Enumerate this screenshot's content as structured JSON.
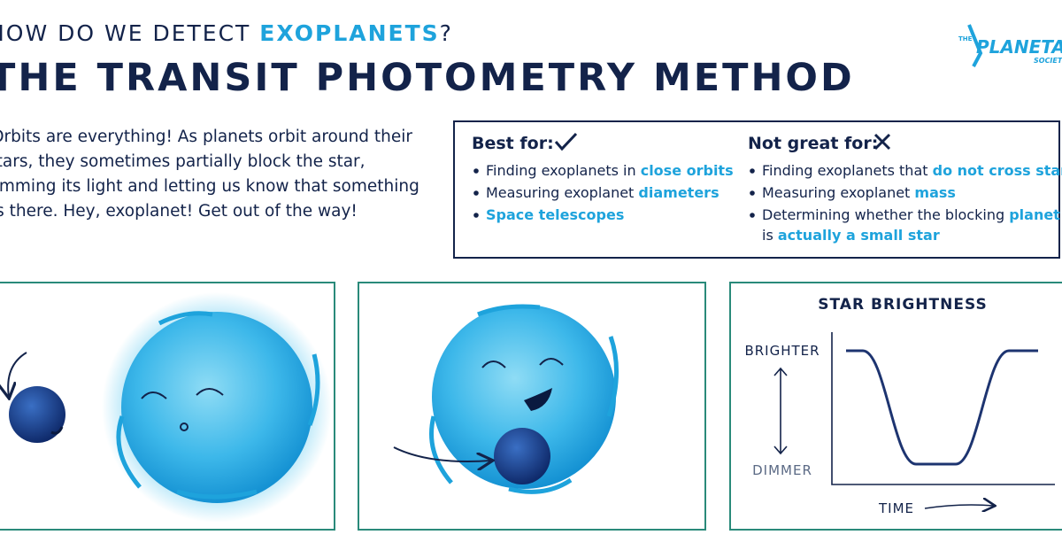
{
  "header": {
    "kicker": [
      {
        "t": "HOW DO WE DETECT ",
        "hl": false
      },
      {
        "t": "EXOPLANETS",
        "hl": true
      },
      {
        "t": "?",
        "hl": false
      }
    ],
    "title": "THE TRANSIT PHOTOMETRY METHOD"
  },
  "logo": {
    "top": "THE",
    "name": "PLANETARY",
    "bottom": "SOCIETY"
  },
  "intro": {
    "lines": [
      "Orbits are everything! As planets orbit around their",
      "stars, they sometimes partially block the star,",
      "dimming its light and letting us know that something",
      "is there. Hey, exoplanet! Get out of the way!"
    ]
  },
  "best_for": {
    "heading": "Best for:",
    "items": [
      [
        [
          {
            "t": "Finding exoplanets in ",
            "hl": false
          },
          {
            "t": "close orbits",
            "hl": true
          }
        ]
      ],
      [
        [
          {
            "t": "Measuring exoplanet ",
            "hl": false
          },
          {
            "t": "diameters",
            "hl": true
          }
        ]
      ],
      [
        [
          {
            "t": "Space telescopes",
            "hl": true
          }
        ]
      ]
    ]
  },
  "not_great_for": {
    "heading": "Not great for:",
    "items": [
      [
        [
          {
            "t": "Finding exoplanets that ",
            "hl": false
          },
          {
            "t": "do not cross stars",
            "hl": true
          }
        ]
      ],
      [
        [
          {
            "t": "Measuring exoplanet ",
            "hl": false
          },
          {
            "t": "mass",
            "hl": true
          }
        ]
      ],
      [
        [
          {
            "t": "Determining whether the blocking ",
            "hl": false
          },
          {
            "t": "planet",
            "hl": true
          }
        ],
        [
          {
            "t": "is ",
            "hl": false
          },
          {
            "t": "actually a small star",
            "hl": true
          }
        ]
      ]
    ]
  },
  "graph": {
    "title": "STAR BRIGHTNESS",
    "top_label": "BRIGHTER",
    "bottom_label": "DIMMER",
    "x_label": "TIME"
  }
}
